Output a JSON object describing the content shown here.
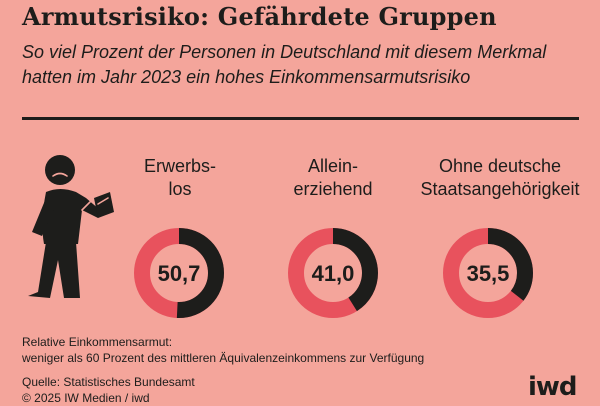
{
  "header": {
    "title": "Armutsrisiko: Gefährdete Gruppen",
    "subtitle": "So viel Prozent der Personen in Deutschland mit diesem Merkmal hatten im Jahr 2023 ein hohes Einkommensarmutsrisiko"
  },
  "chart_data": {
    "type": "pie",
    "title": "Armutsrisiko: Gefährdete Gruppen",
    "subtitle": "So viel Prozent der Personen in Deutschland mit diesem Merkmal hatten im Jahr 2023 ein hohes Einkommensarmutsrisiko",
    "unit": "Prozent",
    "year": 2023,
    "categories": [
      {
        "label_lines": [
          "Erwerbs-",
          "los"
        ],
        "value": 50.7,
        "display": "50,7"
      },
      {
        "label_lines": [
          "Allein-",
          "erziehend"
        ],
        "value": 41.0,
        "display": "41,0"
      },
      {
        "label_lines": [
          "Ohne deutsche",
          "Staatsangehörigkeit"
        ],
        "value": 35.5,
        "display": "35,5"
      }
    ],
    "colors": {
      "value_arc": "#1d1d1b",
      "rest_arc": "#e8525d",
      "background": "#f4a59b"
    }
  },
  "footer": {
    "note_line1": "Relative Einkommensarmut:",
    "note_line2": "weniger als 60 Prozent des mittleren Äquivalenzeinkommens zur Verfügung",
    "source": "Quelle: Statistisches Bundesamt",
    "copyright": "© 2025 IW Medien / iwd",
    "logo": "iwd"
  }
}
